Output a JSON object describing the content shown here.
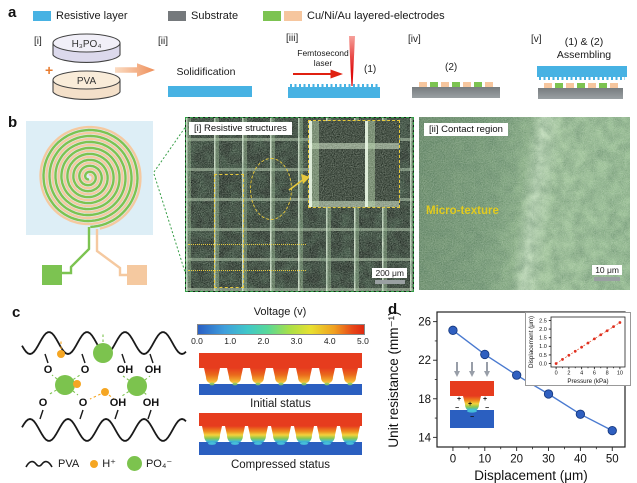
{
  "figure": {
    "panel_labels": {
      "a": "a",
      "b": "b",
      "c": "c",
      "d": "d"
    }
  },
  "panel_a": {
    "legend": [
      {
        "label": "Resistive layer",
        "color": "#47b2e3"
      },
      {
        "label": "Substrate",
        "color": "#75797c"
      },
      {
        "label": "Cu/Ni/Au layered-electrodes",
        "colors": [
          "#7cc351",
          "#f6c69e"
        ]
      }
    ],
    "electrode_colors": [
      "#f6c69e",
      "#7cc351"
    ],
    "resistive_color": "#47b2e3",
    "steps": {
      "s1_tag": "[i]",
      "s1_dish_top": "H₃PO₄",
      "s1_plus": "+",
      "s1_dish_bottom": "PVA",
      "s2_tag": "[ii]",
      "s2_label": "Solidification",
      "s3_tag": "[iii]",
      "s3_laser": "Femtosecond laser",
      "s3_mark": "(1)",
      "s4_tag": "[iv]",
      "s4_mark": "(2)",
      "s5_tag": "[v]",
      "s5_mark": "(1) & (2)",
      "s5_label": "Assembling"
    }
  },
  "panel_b": {
    "device": {
      "bg": "#ddeef6",
      "trace_green": "#7cc351",
      "trace_peach": "#f5c9a0"
    },
    "sem_i": {
      "title": "[i] Resistive structures",
      "scale_label": "200 μm"
    },
    "sem_ii": {
      "title": "[ii] Contact region",
      "texture_label": "Micro-texture",
      "scale_label": "10 μm"
    }
  },
  "panel_c": {
    "molecule": {
      "row1": [
        "O",
        "O",
        "OH",
        "OH"
      ],
      "row2": [
        "O",
        "O",
        "OH",
        "OH"
      ]
    },
    "legend": [
      {
        "symbol": "pva-chain",
        "label": "PVA"
      },
      {
        "symbol": "proton",
        "label": "H⁺"
      },
      {
        "symbol": "phosphate",
        "label": "PO₄⁻"
      }
    ],
    "colorbar": {
      "title": "Voltage (v)",
      "ticks": [
        "0.0",
        "1.0",
        "2.0",
        "3.0",
        "4.0",
        "5.0"
      ]
    },
    "sim1_label": "Initial status",
    "sim2_label": "Compressed status"
  },
  "panel_d": {
    "sim_symbols": {
      "plus": "+",
      "minus": "−"
    }
  },
  "chart_data": [
    {
      "type": "line",
      "xlabel": "Displacement (μm)",
      "ylabel": "Unit resistance (mm⁻¹)",
      "x": [
        0,
        10,
        20,
        30,
        40,
        50
      ],
      "y": [
        25.1,
        22.6,
        20.45,
        18.5,
        16.4,
        14.7
      ],
      "xlim": [
        -5,
        54
      ],
      "ylim": [
        13,
        27
      ],
      "xticks": [
        0,
        10,
        20,
        30,
        40,
        50
      ],
      "yticks": [
        14,
        18,
        22,
        26
      ],
      "xminor": [
        5,
        15,
        25,
        35,
        45
      ],
      "yminor": [
        16,
        20,
        24
      ],
      "line_color": "#4a7ad0",
      "marker_color": "#2f5fc0",
      "legend_position": "none",
      "grid": false
    },
    {
      "type": "scatter",
      "xlabel": "Pressure (kPa)",
      "ylabel": "Displacement (μm)",
      "x": [
        0,
        1,
        2,
        3,
        4,
        5,
        6,
        7,
        8,
        9,
        10
      ],
      "y": [
        0.0,
        0.24,
        0.48,
        0.71,
        0.95,
        1.19,
        1.43,
        1.67,
        1.9,
        2.14,
        2.38
      ],
      "xlim": [
        -0.8,
        10.8
      ],
      "ylim": [
        -0.2,
        2.7
      ],
      "xticks": [
        0,
        2,
        4,
        6,
        8,
        10
      ],
      "yticks": [
        0.0,
        0.5,
        1.0,
        1.5,
        2.0,
        2.5
      ],
      "xminor": [
        1,
        3,
        5,
        7,
        9
      ],
      "line_color": "#e05030",
      "marker_color": "#e03020",
      "legend_position": "none",
      "grid": false
    }
  ]
}
